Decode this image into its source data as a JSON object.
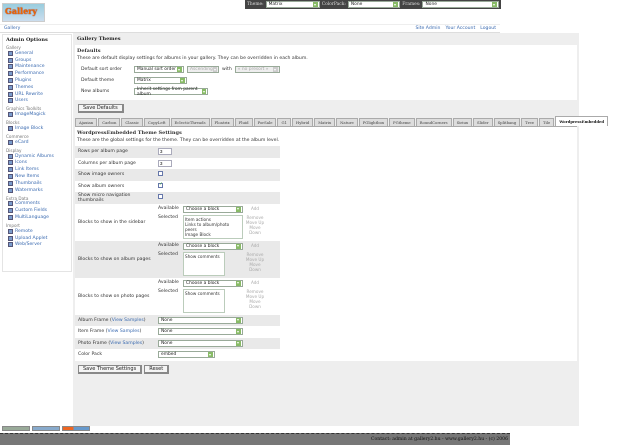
{
  "topbar": {
    "theme_label": "Theme:",
    "theme_value": "Matrix",
    "colorpack_label": "ColorPack:",
    "colorpack_value": "None",
    "frames_label": "Frames:",
    "frames_value": "None"
  },
  "logo": {
    "text": "Gallery"
  },
  "breadcrumb": {
    "root": "Gallery"
  },
  "header_links": [
    "Site Admin",
    "Your Account",
    "Logout"
  ],
  "sidebar": {
    "title": "Admin Options",
    "groups": [
      {
        "label": "Gallery",
        "items": [
          "General",
          "Groups",
          "Maintenance",
          "Performance",
          "Plugins",
          "Themes",
          "URL Rewrite",
          "Users"
        ]
      },
      {
        "label": "Graphics Toolkits",
        "items": [
          "ImageMagick"
        ]
      },
      {
        "label": "Blocks",
        "items": [
          "Image Block"
        ]
      },
      {
        "label": "Commerce",
        "items": [
          "eCard"
        ]
      },
      {
        "label": "Display",
        "items": [
          "Dynamic Albums",
          "Icons",
          "Link Items",
          "New Items",
          "Thumbnails",
          "Watermarks"
        ]
      },
      {
        "label": "Extra Data",
        "items": [
          "Comments",
          "Custom Fields",
          "MultiLanguage"
        ]
      },
      {
        "label": "Import",
        "items": [
          "Remote",
          "Upload Applet",
          "Web/Server"
        ]
      }
    ],
    "current": "Themes"
  },
  "main": {
    "title": "Gallery Themes",
    "defaults": {
      "heading": "Defaults",
      "description": "These are default display settings for albums in your gallery. They can be overridden in each album.",
      "sort_label": "Default sort order",
      "sort_value": "Manual sort order",
      "sort_dir": "Ascending",
      "with_label": "with",
      "with_value": "« no presort »",
      "theme_label": "Default theme",
      "theme_value": "Matrix",
      "new_albums_label": "New albums",
      "new_albums_value": "Inherit settings from parent album",
      "save_label": "Save Defaults"
    },
    "tabs": [
      "Ajaxian",
      "Carbon",
      "Classic",
      "CopyLeft",
      "EclecticThreads",
      "Floatrix",
      "Fluid",
      "PorSale",
      "G1",
      "Hybrid",
      "Matrix",
      "Nature",
      "PGlightbox",
      "PGtheme",
      "RoundCorners",
      "Siriux",
      "Slider",
      "Splitbang",
      "Tree",
      "Tile",
      "WordpressEmbedded"
    ],
    "active_tab": "WordpressEmbedded",
    "settings": {
      "heading": "WordpressEmbedded Theme Settings",
      "description": "These are the global settings for the theme. They can be overridden at the album level.",
      "rows_label": "Rows per album page",
      "rows_value": "3",
      "cols_label": "Columns per album page",
      "cols_value": "3",
      "image_owners_label": "Show image owners",
      "image_owners": false,
      "album_owners_label": "Show album owners",
      "album_owners": true,
      "micro_nav_label": "Show micro navigation thumbnails",
      "micro_nav": false,
      "available_label": "Available",
      "selected_label": "Selected",
      "choose": "Choose a block",
      "add": "Add",
      "remove": "Remove",
      "move_up": "Move Up",
      "move_down": "Move Down",
      "sidebar_blocks_label": "Blocks to show in the sidebar",
      "sidebar_blocks": [
        "Item actions",
        "Links to album/photo peers",
        "Image Block"
      ],
      "album_blocks_label": "Blocks to show on album pages",
      "album_blocks": [
        "Show comments"
      ],
      "photo_blocks_label": "Blocks to show on photo pages",
      "photo_blocks": [
        "Show comments"
      ],
      "album_frame_label": "Album Frame",
      "item_frame_label": "Item Frame",
      "photo_frame_label": "Photo Frame",
      "view_samples": "View Samples",
      "album_frame": "None",
      "item_frame": "None",
      "photo_frame": "None",
      "color_pack_label": "Color Pack",
      "color_pack": "embed",
      "save_label": "Save Theme Settings",
      "reset_label": "Reset"
    }
  },
  "footer": {
    "text": "Contact: admin at gallery2.hu - www.gallery2.hu - (c) 2006"
  }
}
